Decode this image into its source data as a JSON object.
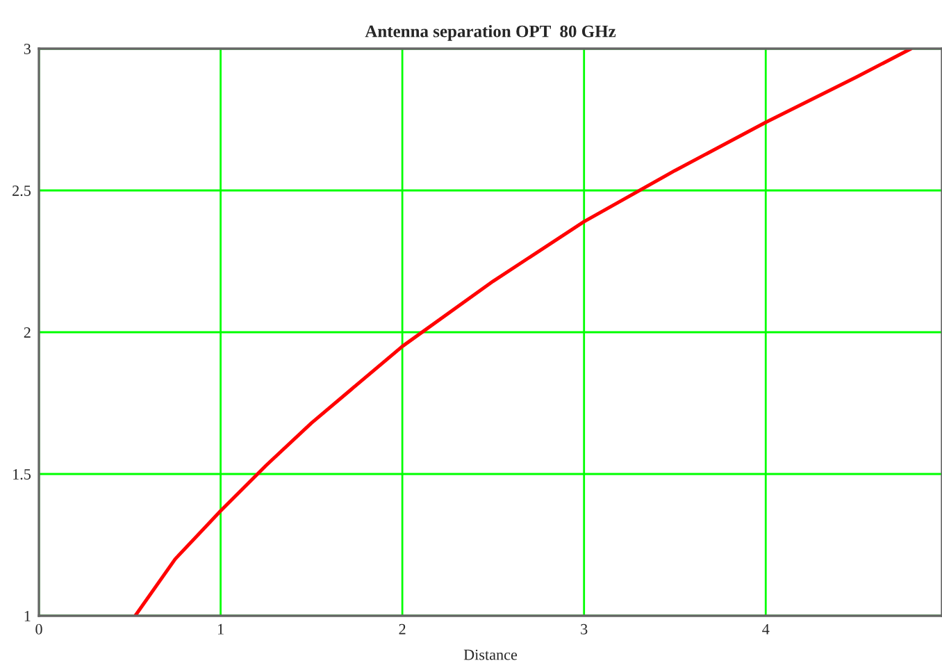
{
  "chart_data": {
    "type": "line",
    "title": "Antenna separation OPT  80 GHz",
    "xlabel": "Distance",
    "x": [
      0.53,
      0.75,
      1,
      1.25,
      1.5,
      2,
      2.5,
      3,
      3.5,
      4,
      4.5,
      4.8
    ],
    "series": [
      {
        "color": "#ff0000",
        "values": [
          1,
          1.2,
          1.37,
          1.53,
          1.68,
          1.95,
          2.18,
          2.39,
          2.57,
          2.74,
          2.9,
          3.0
        ]
      }
    ],
    "xlim": [
      0,
      4.97
    ],
    "xticks": [
      0,
      1,
      2,
      3,
      4
    ],
    "ylim": [
      1,
      3
    ],
    "yticks": [
      1,
      1.5,
      2,
      2.5,
      3
    ],
    "grid": true,
    "legend": false,
    "marker": "none",
    "line_style": "solid"
  }
}
